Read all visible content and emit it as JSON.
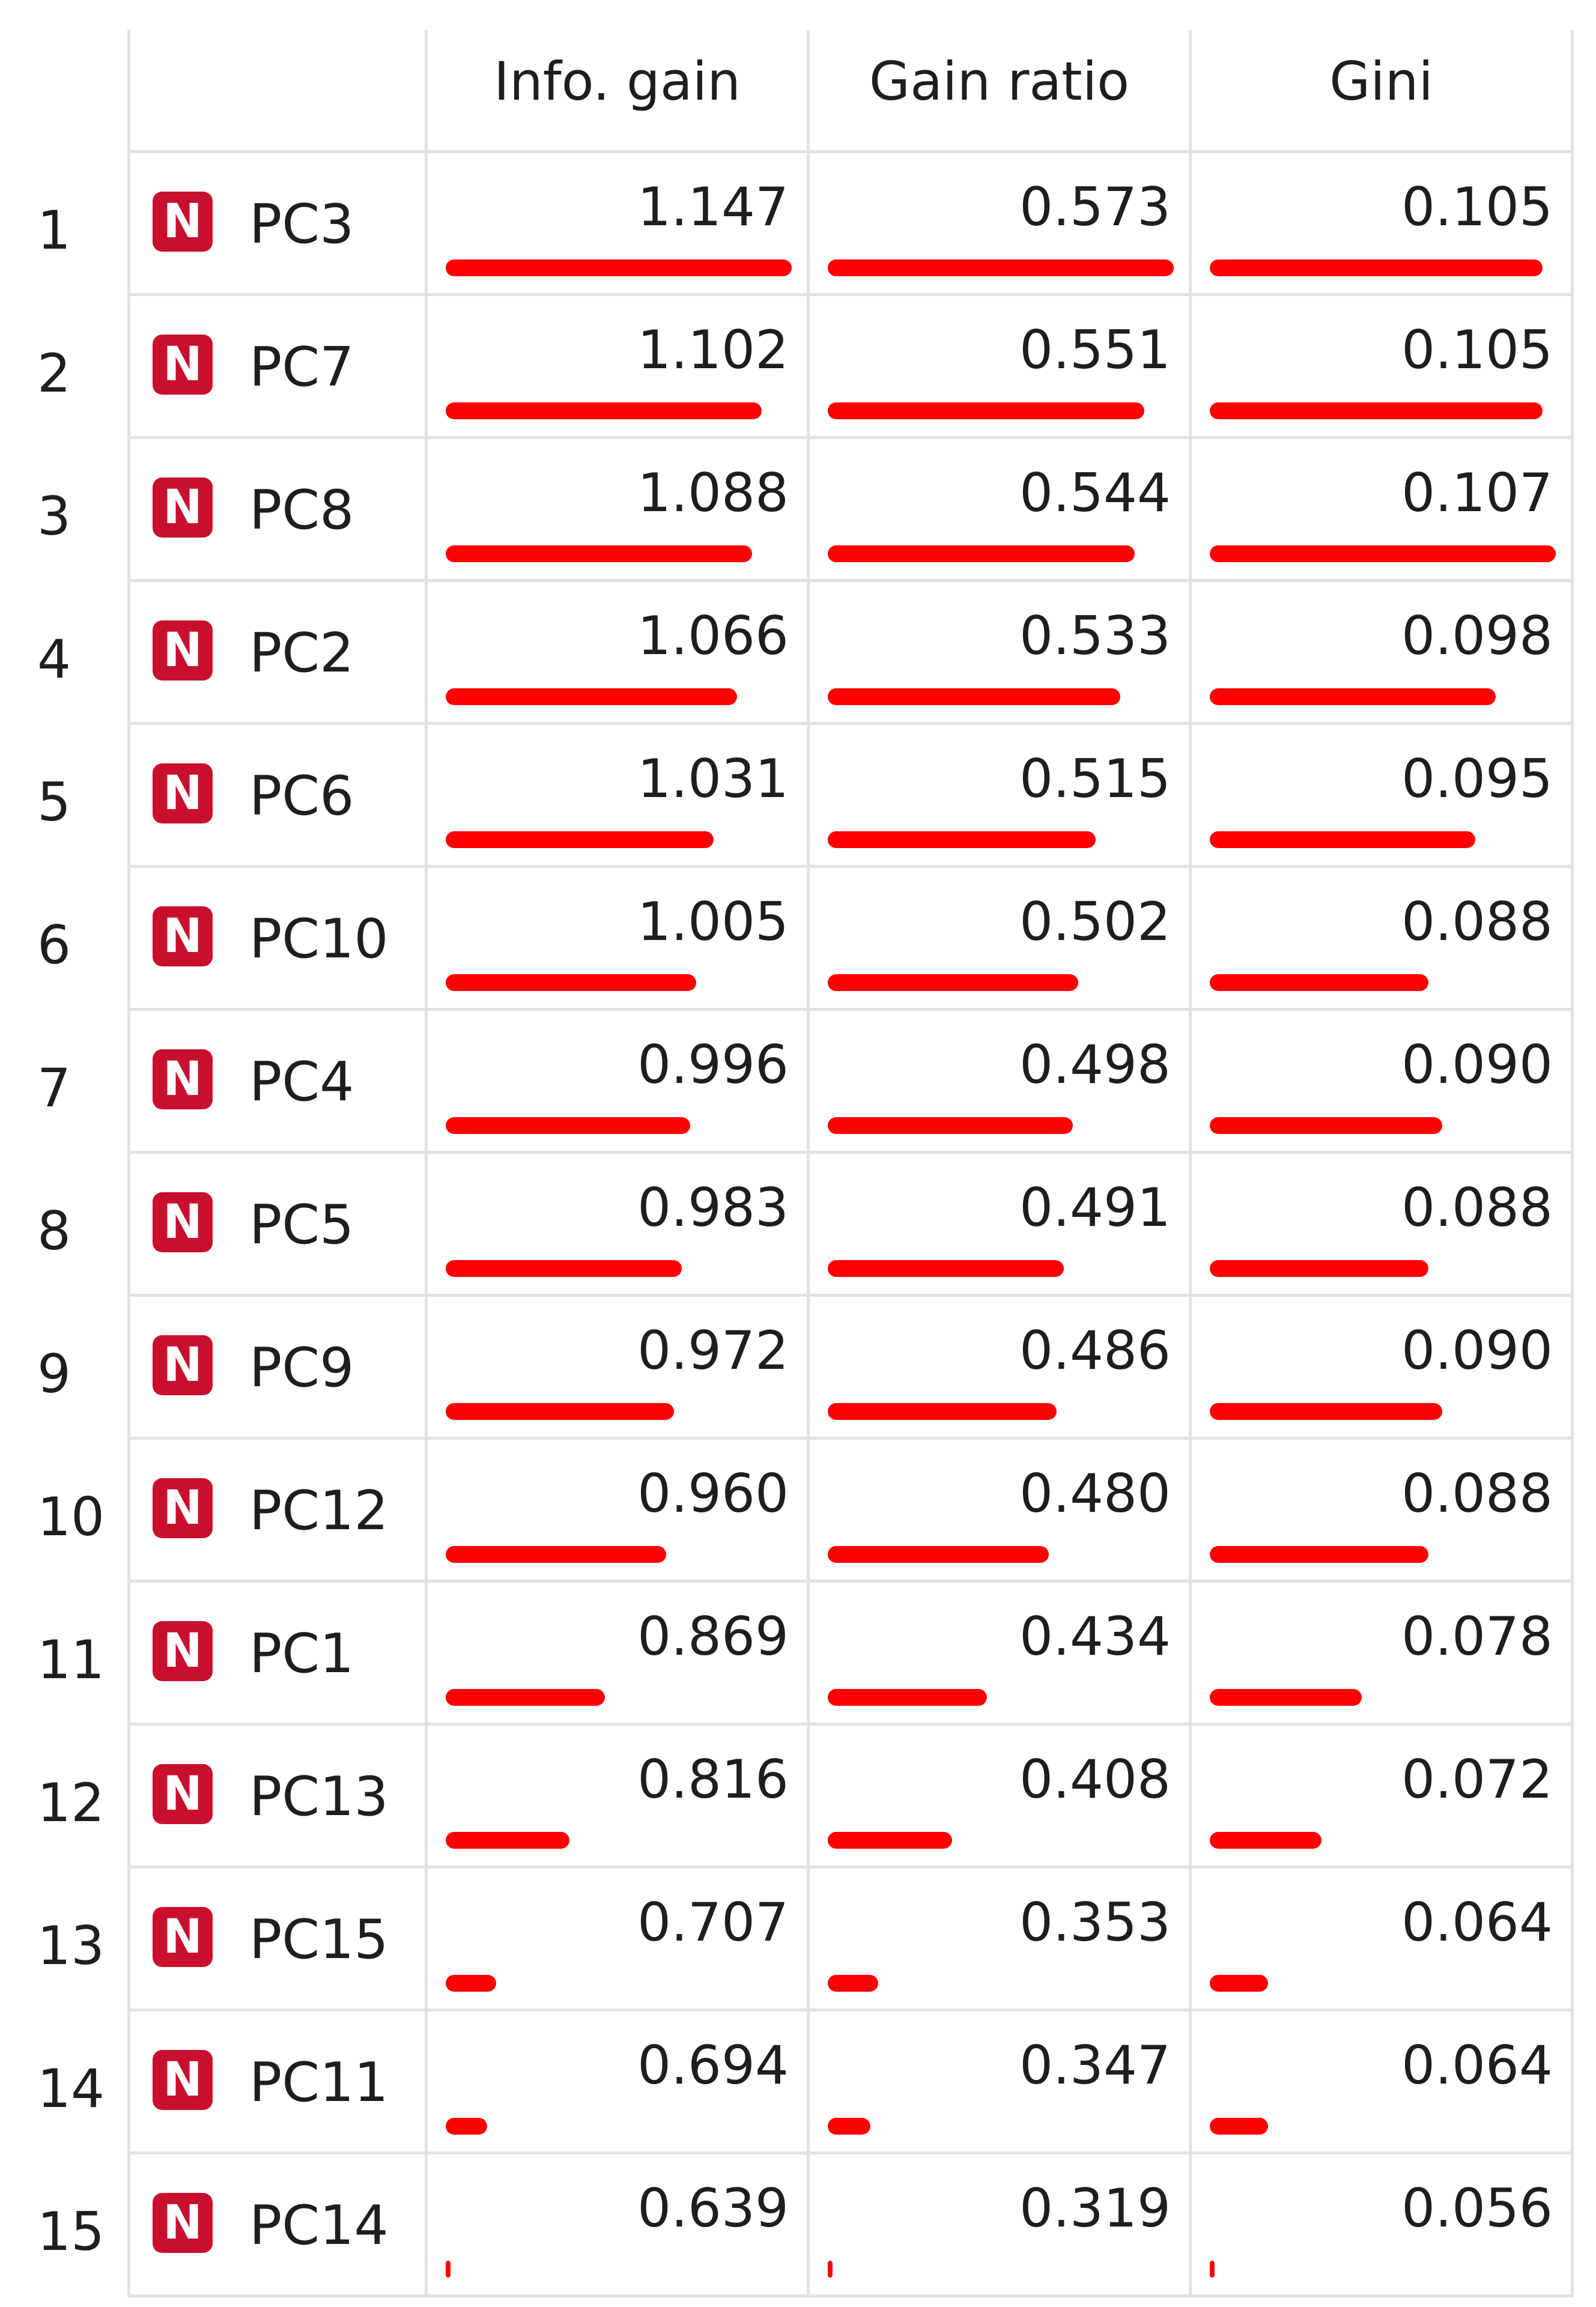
{
  "columns": [
    "Info. gain",
    "Gain ratio",
    "Gini"
  ],
  "colors": {
    "bar": "#ff0000",
    "badge": "#c8102e",
    "grid": "#e2e2e2"
  },
  "badge_label": "N",
  "icons": {
    "badge": "numeric-attribute-icon"
  },
  "rows": [
    {
      "rank": "1",
      "name": "PC3",
      "info_gain": "1.147",
      "gain_ratio": "0.573",
      "gini": "0.105"
    },
    {
      "rank": "2",
      "name": "PC7",
      "info_gain": "1.102",
      "gain_ratio": "0.551",
      "gini": "0.105"
    },
    {
      "rank": "3",
      "name": "PC8",
      "info_gain": "1.088",
      "gain_ratio": "0.544",
      "gini": "0.107"
    },
    {
      "rank": "4",
      "name": "PC2",
      "info_gain": "1.066",
      "gain_ratio": "0.533",
      "gini": "0.098"
    },
    {
      "rank": "5",
      "name": "PC6",
      "info_gain": "1.031",
      "gain_ratio": "0.515",
      "gini": "0.095"
    },
    {
      "rank": "6",
      "name": "PC10",
      "info_gain": "1.005",
      "gain_ratio": "0.502",
      "gini": "0.088"
    },
    {
      "rank": "7",
      "name": "PC4",
      "info_gain": "0.996",
      "gain_ratio": "0.498",
      "gini": "0.090"
    },
    {
      "rank": "8",
      "name": "PC5",
      "info_gain": "0.983",
      "gain_ratio": "0.491",
      "gini": "0.088"
    },
    {
      "rank": "9",
      "name": "PC9",
      "info_gain": "0.972",
      "gain_ratio": "0.486",
      "gini": "0.090"
    },
    {
      "rank": "10",
      "name": "PC12",
      "info_gain": "0.960",
      "gain_ratio": "0.480",
      "gini": "0.088"
    },
    {
      "rank": "11",
      "name": "PC1",
      "info_gain": "0.869",
      "gain_ratio": "0.434",
      "gini": "0.078"
    },
    {
      "rank": "12",
      "name": "PC13",
      "info_gain": "0.816",
      "gain_ratio": "0.408",
      "gini": "0.072"
    },
    {
      "rank": "13",
      "name": "PC15",
      "info_gain": "0.707",
      "gain_ratio": "0.353",
      "gini": "0.064"
    },
    {
      "rank": "14",
      "name": "PC11",
      "info_gain": "0.694",
      "gain_ratio": "0.347",
      "gini": "0.064"
    },
    {
      "rank": "15",
      "name": "PC14",
      "info_gain": "0.639",
      "gain_ratio": "0.319",
      "gini": "0.056"
    }
  ]
}
